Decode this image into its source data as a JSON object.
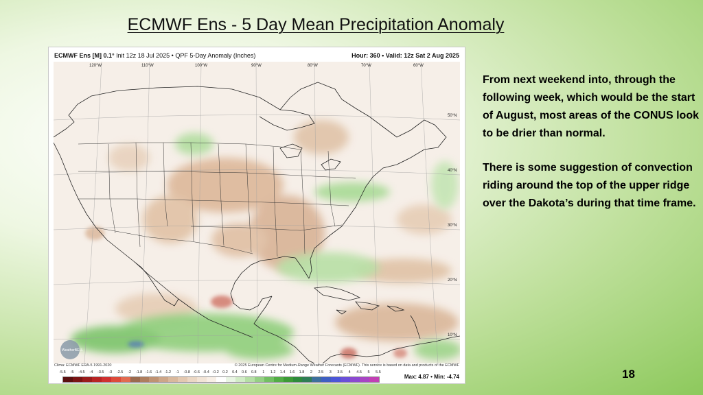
{
  "slide": {
    "title": "ECMWF Ens - 5 Day Mean Precipitation Anomaly",
    "page_number": "18"
  },
  "figure": {
    "header_model": "ECMWF Ens [M] 0.1°",
    "header_init": "Init 12z 18 Jul 2025 • QPF 5-Day Anomaly (Inches)",
    "header_valid": "Hour: 360 • Valid: 12z Sat 2 Aug 2025",
    "longitudes": [
      "120°W",
      "110°W",
      "100°W",
      "90°W",
      "80°W",
      "70°W",
      "60°W"
    ],
    "latitudes": [
      "50°N",
      "40°N",
      "30°N",
      "20°N",
      "10°N"
    ],
    "watermark": "WeatherBELL",
    "foot_left": "Clima: ECMWF ERA-5 1991-2020",
    "foot_right": "© 2025 European Centre for Medium-Range Weather Forecasts (ECMWF). This service is based on data and products of the ECMWF",
    "colorbar_ticks": [
      "-5.5",
      "-5",
      "-4.5",
      "-4",
      "-3.5",
      "-3",
      "-2.5",
      "-2",
      "-1.8",
      "-1.6",
      "-1.4",
      "-1.2",
      "-1",
      "-0.8",
      "-0.6",
      "-0.4",
      "-0.2",
      "0.2",
      "0.4",
      "0.6",
      "0.8",
      "1",
      "1.2",
      "1.4",
      "1.6",
      "1.8",
      "2",
      "2.5",
      "3",
      "3.5",
      "4",
      "4.5",
      "5",
      "5.5"
    ],
    "colorbar_colors": [
      "#5a1010",
      "#7a1414",
      "#9a1c1c",
      "#b82424",
      "#cf3030",
      "#dd4a3a",
      "#e26a50",
      "#9b6a4e",
      "#ae7e5e",
      "#bf9272",
      "#cda688",
      "#d9b89c",
      "#e3c8b0",
      "#ebd7c4",
      "#f2e4d6",
      "#f8efe6",
      "#ffffff",
      "#e9f5e4",
      "#d1ecc6",
      "#b5dfa5",
      "#95d084",
      "#72bf62",
      "#52ad45",
      "#3c9a36",
      "#2e8a3c",
      "#2f7d55",
      "#3d6f9c",
      "#3f5fc2",
      "#4c56d8",
      "#6a4fd8",
      "#8b49d0",
      "#a845c4",
      "#c23fb4"
    ],
    "max_min": "Max: 4.87 • Min: -4.74"
  },
  "commentary": {
    "para1": "From next weekend into, through the following week, which would be the start of August, most areas of the CONUS look to be drier than normal.",
    "para2": "There is some suggestion of convection riding around the top of the upper ridge over the Dakota’s during that time frame."
  }
}
